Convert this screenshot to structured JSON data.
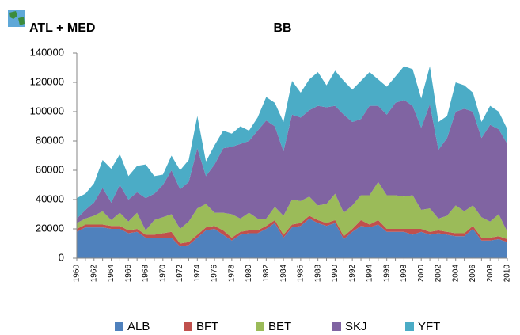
{
  "chart_data": {
    "type": "stacked-area",
    "title": "ATL + MED",
    "subtitle": "BB",
    "categories": [
      "1960",
      null,
      "1962",
      null,
      "1964",
      null,
      "1966",
      null,
      "1968",
      null,
      "1970",
      null,
      "1972",
      null,
      "1974",
      null,
      "1976",
      null,
      "1978",
      null,
      "1980",
      null,
      "1982",
      null,
      "1984",
      null,
      "1986",
      null,
      "1988",
      null,
      "1990",
      null,
      "1992",
      null,
      "1994",
      null,
      "1996",
      null,
      "1998",
      null,
      "2000",
      null,
      "2002",
      null,
      "2004",
      null,
      "2006",
      null,
      "2008",
      null,
      "2010"
    ],
    "series": [
      {
        "name": "ALB",
        "color": "#4f81bd",
        "values": [
          18000,
          21000,
          21000,
          21000,
          20000,
          20000,
          17000,
          18000,
          14000,
          14000,
          14000,
          14000,
          8000,
          9000,
          14000,
          19000,
          20000,
          16000,
          12000,
          16000,
          17000,
          17000,
          20000,
          24000,
          14000,
          21000,
          22000,
          27000,
          24000,
          22000,
          24000,
          13000,
          18000,
          22000,
          21000,
          23000,
          18000,
          18000,
          18000,
          16000,
          18000,
          16000,
          17000,
          16000,
          15000,
          15000,
          20000,
          12000,
          12000,
          13000,
          11000
        ]
      },
      {
        "name": "BFT",
        "color": "#c0504d",
        "values": [
          2000,
          2000,
          2000,
          2000,
          2000,
          2000,
          2000,
          2000,
          2000,
          2000,
          3000,
          4000,
          2000,
          2000,
          2000,
          2000,
          2000,
          3000,
          2000,
          2000,
          2000,
          2000,
          2000,
          2000,
          2000,
          2000,
          2000,
          2000,
          2000,
          2000,
          2000,
          2000,
          2000,
          4000,
          2000,
          3000,
          2000,
          2000,
          2000,
          4000,
          2000,
          2000,
          2000,
          2000,
          2000,
          2000,
          2000,
          2000,
          2000,
          2000,
          2000
        ]
      },
      {
        "name": "BET",
        "color": "#9bbb59",
        "values": [
          4000,
          4000,
          6000,
          9000,
          4000,
          9000,
          6000,
          11000,
          3000,
          10000,
          11000,
          12000,
          10000,
          14000,
          18000,
          16000,
          9000,
          12000,
          16000,
          9000,
          12000,
          8000,
          5000,
          9000,
          13000,
          17000,
          15000,
          13000,
          10000,
          13000,
          18000,
          16000,
          16000,
          17000,
          20000,
          26000,
          23000,
          23000,
          22000,
          23000,
          13000,
          16000,
          8000,
          11000,
          19000,
          15000,
          14000,
          14000,
          11000,
          15000,
          5000
        ]
      },
      {
        "name": "SKJ",
        "color": "#8064a2",
        "values": [
          3000,
          6000,
          9000,
          16000,
          12000,
          19000,
          15000,
          14000,
          22000,
          18000,
          22000,
          30000,
          27000,
          27000,
          41000,
          19000,
          33000,
          44000,
          46000,
          51000,
          49000,
          60000,
          67000,
          55000,
          44000,
          58000,
          57000,
          59000,
          68000,
          66000,
          60000,
          67000,
          57000,
          52000,
          61000,
          52000,
          55000,
          63000,
          66000,
          61000,
          56000,
          71000,
          47000,
          53000,
          64000,
          70000,
          64000,
          54000,
          66000,
          58000,
          60000
        ]
      },
      {
        "name": "YFT",
        "color": "#4bacc6",
        "values": [
          14000,
          11000,
          13000,
          19000,
          23000,
          21000,
          16000,
          18000,
          23000,
          12000,
          7000,
          10000,
          13000,
          15000,
          22000,
          10000,
          13000,
          12000,
          9000,
          12000,
          7000,
          9000,
          16000,
          16000,
          20000,
          23000,
          17000,
          21000,
          23000,
          15000,
          24000,
          23000,
          22000,
          26000,
          23000,
          18000,
          19000,
          18000,
          23000,
          25000,
          20000,
          26000,
          19000,
          15000,
          20000,
          16000,
          13000,
          11000,
          13000,
          12000,
          10000
        ]
      }
    ],
    "ylim": [
      0,
      140000
    ],
    "yticks": [
      0,
      20000,
      40000,
      60000,
      80000,
      100000,
      120000,
      140000
    ]
  }
}
